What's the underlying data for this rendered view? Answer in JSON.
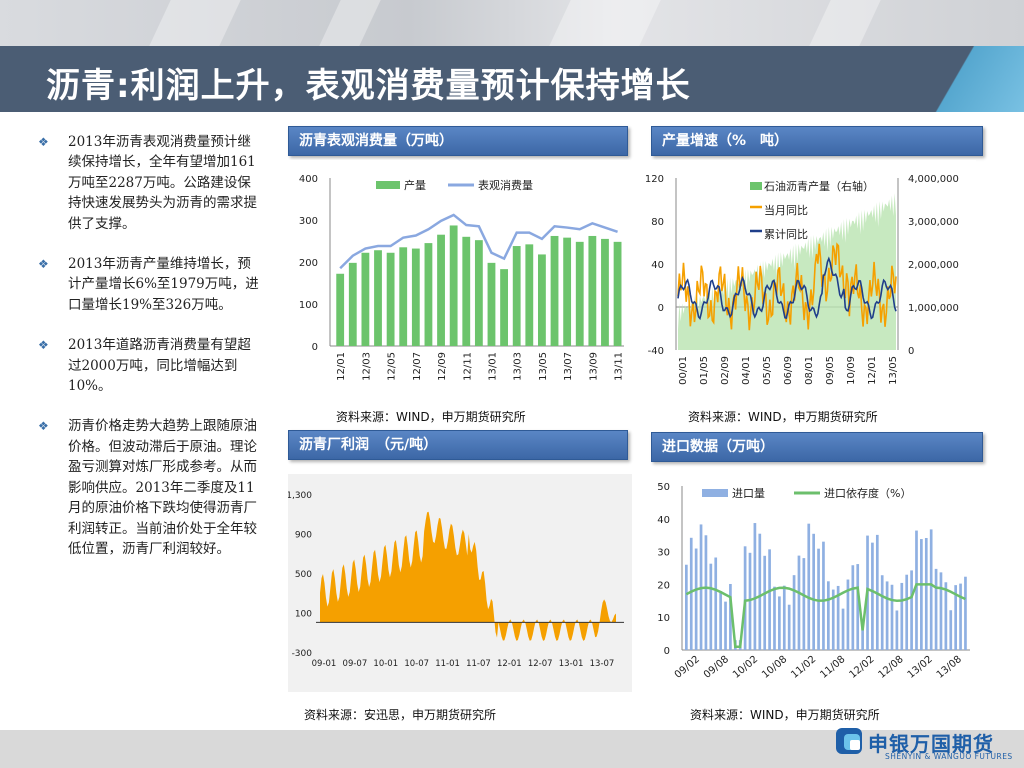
{
  "title": "沥青:利润上升，表观消费量预计保持增长",
  "bullets": [
    "2013年沥青表观消费量预计继续保持增长，全年有望增加161万吨至2287万吨。公路建设保持快速发展势头为沥青的需求提供了支撑。",
    "2013年沥青产量维持增长，预计产量增长6%至1979万吨，进口量增长19%至326万吨。",
    "2013年道路沥青消费量有望超过2000万吨，同比增幅达到10%。",
    "沥青价格走势大趋势上跟随原油价格。但波动滞后于原油。理论盈亏测算对炼厂形成参考。从而影响供应。2013年二季度及11月的原油价格下跌均使得沥青厂利润转正。当前油价处于全年较低位置，沥青厂利润较好。"
  ],
  "panels": {
    "consumption": {
      "title": "沥青表观消费量（万吨）",
      "source": "资料来源：WIND，申万期货研究所"
    },
    "growth": {
      "title": "产量增速（%　吨）",
      "source": "资料来源：WIND，申万期货研究所"
    },
    "profit": {
      "title": "沥青厂利润　（元/吨）",
      "source": "资料来源：安迅思，申万期货研究所"
    },
    "imports": {
      "title": "进口数据（万吨）",
      "source": "资料来源：WIND，申万期货研究所"
    }
  },
  "colors": {
    "title_bar": "#4b5d74",
    "panel_head": "#4a76b6",
    "bar_green": "#6cc46c",
    "line_blue": "#8aa8e0",
    "orange": "#f5a000",
    "navy": "#1f3e8a",
    "import_bar": "#8fb0e2",
    "import_line": "#6cbf6c"
  },
  "logo": {
    "cn": "申银万国期货",
    "en": "SHENYIN & WANGUO FUTURES"
  },
  "chart_data": [
    {
      "type": "bar",
      "title": "沥青表观消费量（万吨）",
      "categories": [
        "12/01",
        "12/02",
        "12/03",
        "12/04",
        "12/05",
        "12/06",
        "12/07",
        "12/08",
        "12/09",
        "12/10",
        "12/11",
        "12/12",
        "13/01",
        "13/02",
        "13/03",
        "13/04",
        "13/05",
        "13/06",
        "13/07",
        "13/08",
        "13/09",
        "13/10",
        "13/11"
      ],
      "tick_labels": [
        "12/01",
        "12/03",
        "12/05",
        "12/07",
        "12/09",
        "12/11",
        "13/01",
        "13/03",
        "13/05",
        "13/07",
        "13/09",
        "13/11"
      ],
      "series": [
        {
          "name": "产量",
          "type": "bar",
          "values": [
            172,
            198,
            222,
            228,
            222,
            235,
            232,
            245,
            265,
            287,
            260,
            252,
            198,
            183,
            238,
            242,
            218,
            262,
            258,
            248,
            262,
            255,
            248
          ]
        },
        {
          "name": "表观消费量",
          "type": "line",
          "values": [
            185,
            215,
            232,
            238,
            238,
            258,
            263,
            278,
            298,
            312,
            288,
            285,
            222,
            208,
            270,
            270,
            255,
            285,
            282,
            278,
            292,
            282,
            272
          ]
        }
      ],
      "ylim": [
        0,
        400
      ],
      "yticks": [
        0,
        100,
        200,
        300,
        400
      ],
      "legend": "top"
    },
    {
      "type": "line",
      "title": "产量增速（%　吨）",
      "x_tick_labels": [
        "00/01",
        "01/05",
        "02/09",
        "04/01",
        "05/05",
        "06/09",
        "08/01",
        "09/05",
        "10/09",
        "12/01",
        "13/05"
      ],
      "series": [
        {
          "name": "石油沥青产量（右轴）",
          "type": "area",
          "axis": "right"
        },
        {
          "name": "当月同比",
          "type": "line",
          "axis": "left"
        },
        {
          "name": "累计同比",
          "type": "line",
          "axis": "left"
        }
      ],
      "ylim_left": [
        -40,
        120
      ],
      "yticks_left": [
        -40,
        0,
        40,
        80,
        120
      ],
      "ylim_right": [
        0,
        4000000
      ],
      "yticks_right": [
        "0",
        "1,000,000",
        "2,000,000",
        "3,000,000",
        "4,000,000"
      ],
      "legend": "top-center"
    },
    {
      "type": "area",
      "title": "沥青厂利润　（元/吨）",
      "x_tick_labels": [
        "09-01",
        "09-07",
        "10-01",
        "10-07",
        "11-01",
        "11-07",
        "12-01",
        "12-07",
        "13-01",
        "13-07"
      ],
      "yticks": [
        "-300",
        "100",
        "500",
        "900",
        "1,300"
      ],
      "ylim": [
        -300,
        1300
      ]
    },
    {
      "type": "bar",
      "title": "进口数据（万吨）",
      "x_tick_labels": [
        "09/02",
        "09/08",
        "10/02",
        "10/08",
        "11/02",
        "11/08",
        "12/02",
        "12/08",
        "13/02",
        "13/08"
      ],
      "series": [
        {
          "name": "进口量",
          "type": "bar"
        },
        {
          "name": "进口依存度（%）",
          "type": "line"
        }
      ],
      "ylim": [
        0,
        50
      ],
      "yticks": [
        0,
        10,
        20,
        30,
        40,
        50
      ],
      "legend": "top"
    }
  ]
}
